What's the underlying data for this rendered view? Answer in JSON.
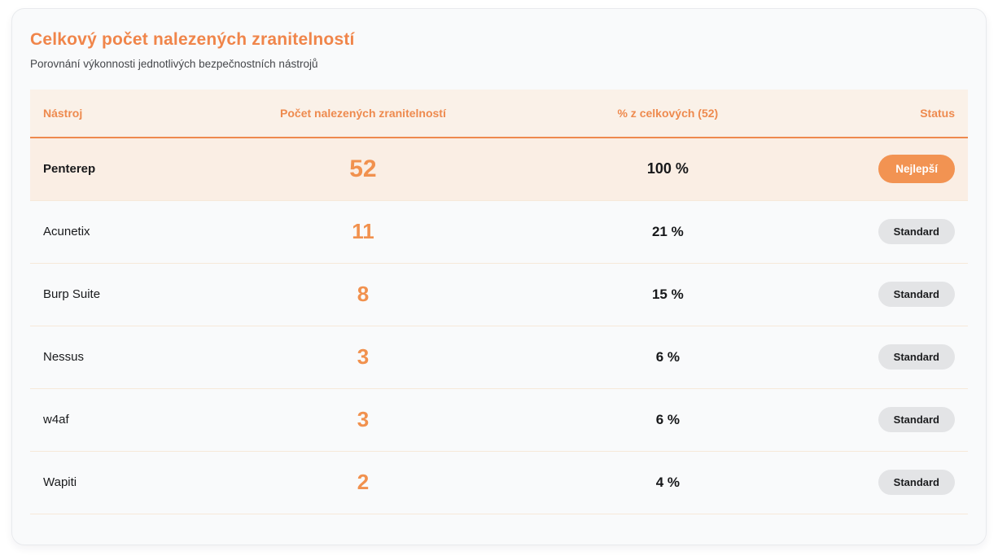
{
  "card": {
    "title": "Celkový počet nalezených zranitelností",
    "subtitle": "Porovnání výkonnosti jednotlivých bezpečnostních nástrojů"
  },
  "colors": {
    "accent_orange": "#ee8a4e",
    "header_bg": "#faf1e8",
    "highlight_row_bg": "#faeee4",
    "best_badge_bg": "#f29352",
    "standard_badge_bg": "#e3e4e6",
    "card_bg": "#f9fafb"
  },
  "table": {
    "columns": [
      "Nástroj",
      "Počet nalezených zranitelností",
      "% z celkových (52)",
      "Status"
    ],
    "rows": [
      {
        "tool": "Penterep",
        "count": "52",
        "percent": "100 %",
        "status": "Nejlepší",
        "highlight": true
      },
      {
        "tool": "Acunetix",
        "count": "11",
        "percent": "21 %",
        "status": "Standard",
        "highlight": false
      },
      {
        "tool": "Burp Suite",
        "count": "8",
        "percent": "15 %",
        "status": "Standard",
        "highlight": false
      },
      {
        "tool": "Nessus",
        "count": "3",
        "percent": "6 %",
        "status": "Standard",
        "highlight": false
      },
      {
        "tool": "w4af",
        "count": "3",
        "percent": "6 %",
        "status": "Standard",
        "highlight": false
      },
      {
        "tool": "Wapiti",
        "count": "2",
        "percent": "4 %",
        "status": "Standard",
        "highlight": false
      }
    ]
  }
}
